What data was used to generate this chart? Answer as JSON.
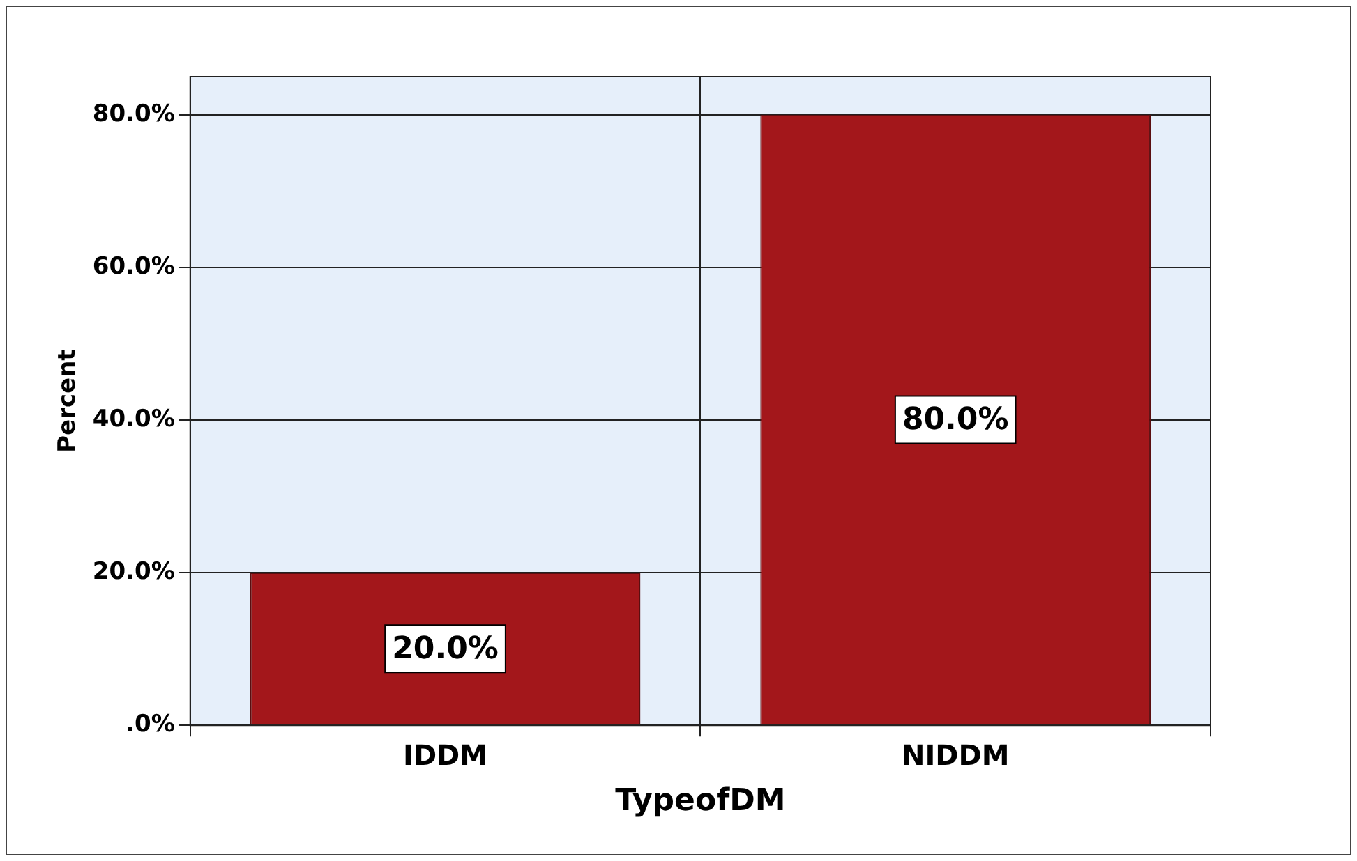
{
  "chart_data": {
    "type": "bar",
    "xlabel": "TypeofDM",
    "ylabel": "Percent",
    "categories": [
      "IDDM",
      "NIDDM"
    ],
    "values": [
      20,
      80
    ],
    "value_labels": [
      "20.0%",
      "80.0%"
    ],
    "color": "#a3171b",
    "ylim": [
      0,
      85
    ],
    "yticks": [
      {
        "value": 0,
        "label": ".0%"
      },
      {
        "value": 20,
        "label": "20.0%"
      },
      {
        "value": 40,
        "label": "40.0%"
      },
      {
        "value": 60,
        "label": "60.0%"
      },
      {
        "value": 80,
        "label": "80.0%"
      }
    ],
    "grid": true
  }
}
